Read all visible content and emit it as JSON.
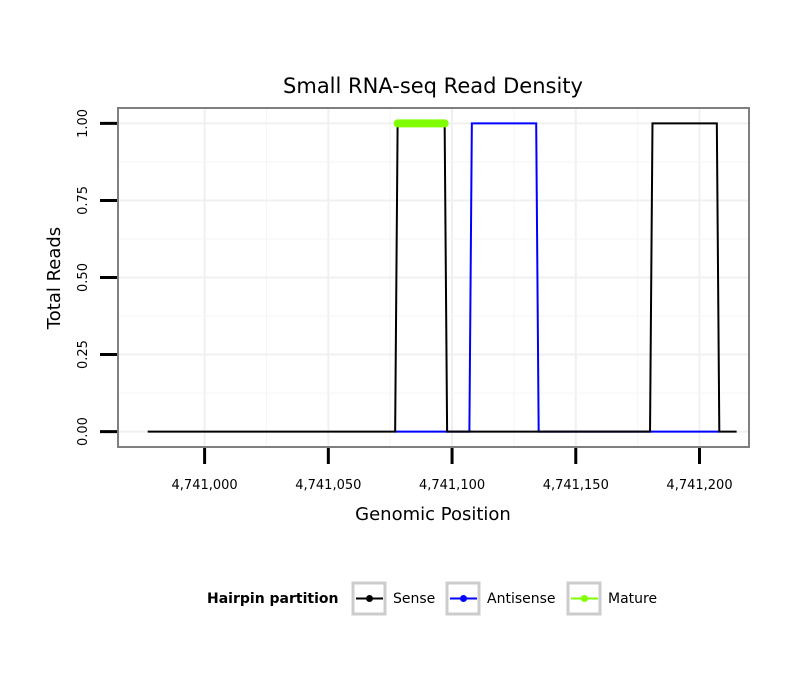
{
  "chart_data": {
    "type": "line",
    "title": "Small RNA-seq Read Density",
    "xlabel": "Genomic Position",
    "ylabel": "Total Reads",
    "xlim": [
      4740965,
      4741220
    ],
    "ylim": [
      -0.05,
      1.05
    ],
    "x_ticks": [
      4741000,
      4741050,
      4741100,
      4741150,
      4741200
    ],
    "x_tick_labels": [
      "4,741,000",
      "4,741,050",
      "4,741,100",
      "4,741,150",
      "4,741,200"
    ],
    "y_ticks": [
      0,
      0.25,
      0.5,
      0.75,
      1
    ],
    "y_tick_labels": [
      "0.00",
      "0.25",
      "0.50",
      "0.75",
      "1.00"
    ],
    "grid": true,
    "legend": {
      "title": "Hairpin partition",
      "position": "bottom",
      "entries": [
        {
          "name": "Sense",
          "color": "#000000"
        },
        {
          "name": "Antisense",
          "color": "#0000ff"
        },
        {
          "name": "Mature",
          "color": "#7fff00"
        }
      ]
    },
    "series": [
      {
        "name": "Sense",
        "color": "#000000",
        "x": [
          4740977,
          4741077,
          4741078,
          4741097,
          4741098,
          4741180,
          4741181,
          4741207,
          4741208,
          4741215
        ],
        "y": [
          0,
          0,
          1,
          1,
          0,
          0,
          1,
          1,
          0,
          0
        ]
      },
      {
        "name": "Antisense",
        "color": "#0000ff",
        "x": [
          4741077,
          4741107,
          4741108,
          4741134,
          4741135,
          4741180,
          4741181,
          4741207,
          4741208
        ],
        "y": [
          0,
          0,
          1,
          1,
          0,
          0,
          0,
          0,
          0
        ]
      },
      {
        "name": "Mature",
        "color": "#7fff00",
        "x": [
          4741078,
          4741097
        ],
        "y": [
          1,
          1
        ]
      }
    ]
  }
}
